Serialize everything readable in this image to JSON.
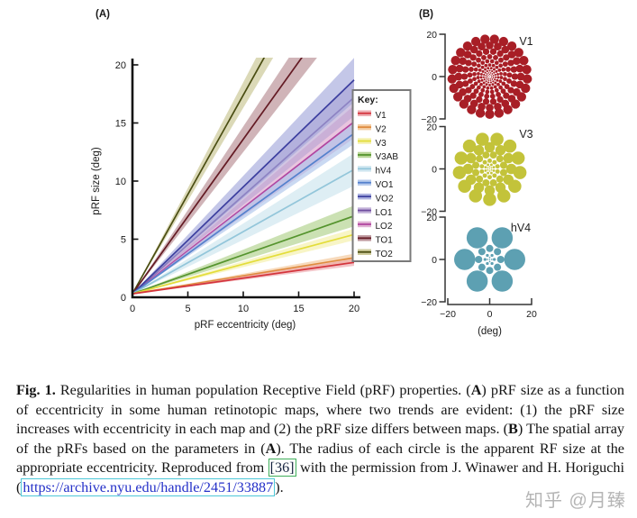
{
  "panels": {
    "a_label": "(A)",
    "b_label": "(B)"
  },
  "watermark": {
    "text": "知乎 @月臻",
    "color": "#b3b3b3"
  },
  "caption": {
    "segments": [
      {
        "style": "bold",
        "text": "Fig. 1."
      },
      {
        "style": "normal",
        "text": " Regularities in human population Receptive Field (pRF) properties. ("
      },
      {
        "style": "bold",
        "text": "A"
      },
      {
        "style": "normal",
        "text": ") pRF size as a function of eccentricity in some human retinotopic maps, where two trends are evident: (1) the pRF size increases with eccentricity in each map and (2) the pRF size differs between maps. ("
      },
      {
        "style": "bold",
        "text": "B"
      },
      {
        "style": "normal",
        "text": ") The spatial array of the pRFs based on the parameters in ("
      },
      {
        "style": "bold",
        "text": "A"
      },
      {
        "style": "normal",
        "text": "). The radius of each circle is the apparent RF size at the appropriate eccentricity. Reproduced from "
      },
      {
        "style": "cite",
        "text": "[36]"
      },
      {
        "style": "normal",
        "text": " with the permission from J. Winawer and H. Horiguchi ("
      },
      {
        "style": "link",
        "text": "https://archive.nyu.edu/handle/2451/33887"
      },
      {
        "style": "normal",
        "text": ")."
      }
    ]
  },
  "chart_data": [
    {
      "id": "panelA",
      "type": "line",
      "panel_label": "(A)",
      "xlabel": "pRF eccentricity (deg)",
      "ylabel": "pRF size (deg)",
      "xlim": [
        0,
        20
      ],
      "ylim": [
        0,
        20
      ],
      "xticks": [
        0,
        5,
        10,
        15,
        20
      ],
      "yticks": [
        0,
        5,
        10,
        15,
        20
      ],
      "grid": false,
      "legend": {
        "title": "Key:",
        "position": "right"
      },
      "series_note": "pRF size (deg) = intercept + slope * eccentricity; shaded band halfwidth grows linearly from 0 at ecc 0 to band_halfwidth_at_20 at ecc 20; TO1/TO2 exit the top of the plot near ecc 14.6 and 11.4",
      "series": [
        {
          "name": "V1",
          "slope": 0.135,
          "intercept": 0.3,
          "value_at_ecc20": 3.0,
          "band_halfwidth_at_20": 0.3,
          "line_color": "#d4343c",
          "band_color": "#eba0a6"
        },
        {
          "name": "V2",
          "slope": 0.155,
          "intercept": 0.3,
          "value_at_ecc20": 3.4,
          "band_halfwidth_at_20": 0.35,
          "line_color": "#df8b3f",
          "band_color": "#f2c493"
        },
        {
          "name": "V3",
          "slope": 0.255,
          "intercept": 0.3,
          "value_at_ecc20": 5.4,
          "band_halfwidth_at_20": 0.5,
          "line_color": "#e3dd3a",
          "band_color": "#f3efa3"
        },
        {
          "name": "V3AB",
          "slope": 0.335,
          "intercept": 0.3,
          "value_at_ecc20": 7.0,
          "band_halfwidth_at_20": 0.9,
          "line_color": "#55942e",
          "band_color": "#abce85"
        },
        {
          "name": "hV4",
          "slope": 0.535,
          "intercept": 0.3,
          "value_at_ecc20": 11.0,
          "band_halfwidth_at_20": 1.4,
          "line_color": "#93c6da",
          "band_color": "#c9e3ee"
        },
        {
          "name": "VO1",
          "slope": 0.69,
          "intercept": 0.3,
          "value_at_ecc20": 14.1,
          "band_halfwidth_at_20": 0.9,
          "line_color": "#5581cd",
          "band_color": "#aac2ea"
        },
        {
          "name": "VO2",
          "slope": 0.92,
          "intercept": 0.3,
          "value_at_ecc20": 18.7,
          "band_halfwidth_at_20": 1.9,
          "line_color": "#3c3f9f",
          "band_color": "#9fa5da"
        },
        {
          "name": "LO1",
          "slope": 0.845,
          "intercept": 0.3,
          "value_at_ecc20": 17.2,
          "band_halfwidth_at_20": 1.6,
          "line_color": "#6f4d9e",
          "band_color": "#b7a3d2"
        },
        {
          "name": "LO2",
          "slope": 0.74,
          "intercept": 0.3,
          "value_at_ecc20": 15.1,
          "band_halfwidth_at_20": 1.4,
          "line_color": "#b145a0",
          "band_color": "#dba2cb"
        },
        {
          "name": "TO1",
          "slope": 1.33,
          "intercept": 0.3,
          "value_at_ecc20": 27.0,
          "band_halfwidth_at_20": 2.2,
          "line_color": "#641b24",
          "band_color": "#b3868d"
        },
        {
          "name": "TO2",
          "slope": 1.71,
          "intercept": 0.3,
          "value_at_ecc20": 34.5,
          "band_halfwidth_at_20": 2.2,
          "line_color": "#4a4d12",
          "band_color": "#c5c28b"
        }
      ]
    },
    {
      "id": "panelB",
      "type": "scatter-circles",
      "panel_label": "(B)",
      "xlabel": "(deg)",
      "xticks": [
        -20,
        0,
        20
      ],
      "yticks": [
        20,
        0,
        -20
      ],
      "axis_range_deg": [
        -20,
        20
      ],
      "rings_format": "[eccentricity_deg, circle_radius_deg, circle_count]",
      "maps": [
        {
          "label": "V1",
          "color": "#a81e26",
          "center_dot_radius_deg": 0.2,
          "rings": [
            [
              1.0,
              0.26,
              9
            ],
            [
              1.8,
              0.36,
              12
            ],
            [
              2.8,
              0.47,
              15
            ],
            [
              4.0,
              0.62,
              17
            ],
            [
              5.5,
              0.8,
              19
            ],
            [
              7.3,
              1.0,
              20
            ],
            [
              9.4,
              1.25,
              21
            ],
            [
              11.9,
              1.55,
              22
            ],
            [
              14.7,
              1.85,
              24
            ],
            [
              17.8,
              2.2,
              25
            ]
          ]
        },
        {
          "label": "V3",
          "color": "#c3c33a",
          "center_dot_radius_deg": 0.25,
          "rings": [
            [
              1.0,
              0.35,
              6
            ],
            [
              2.1,
              0.6,
              8
            ],
            [
              3.9,
              1.05,
              10
            ],
            [
              6.8,
              1.7,
              12
            ],
            [
              10.2,
              2.45,
              12
            ],
            [
              14.4,
              3.1,
              13
            ]
          ]
        },
        {
          "label": "hV4",
          "color": "#5da0b2",
          "center_dot_radius_deg": 0.3,
          "rings": [
            [
              1.0,
              0.35,
              4
            ],
            [
              2.2,
              0.7,
              6
            ],
            [
              5.2,
              1.7,
              8
            ],
            [
              11.8,
              5.0,
              6
            ]
          ]
        }
      ]
    }
  ]
}
